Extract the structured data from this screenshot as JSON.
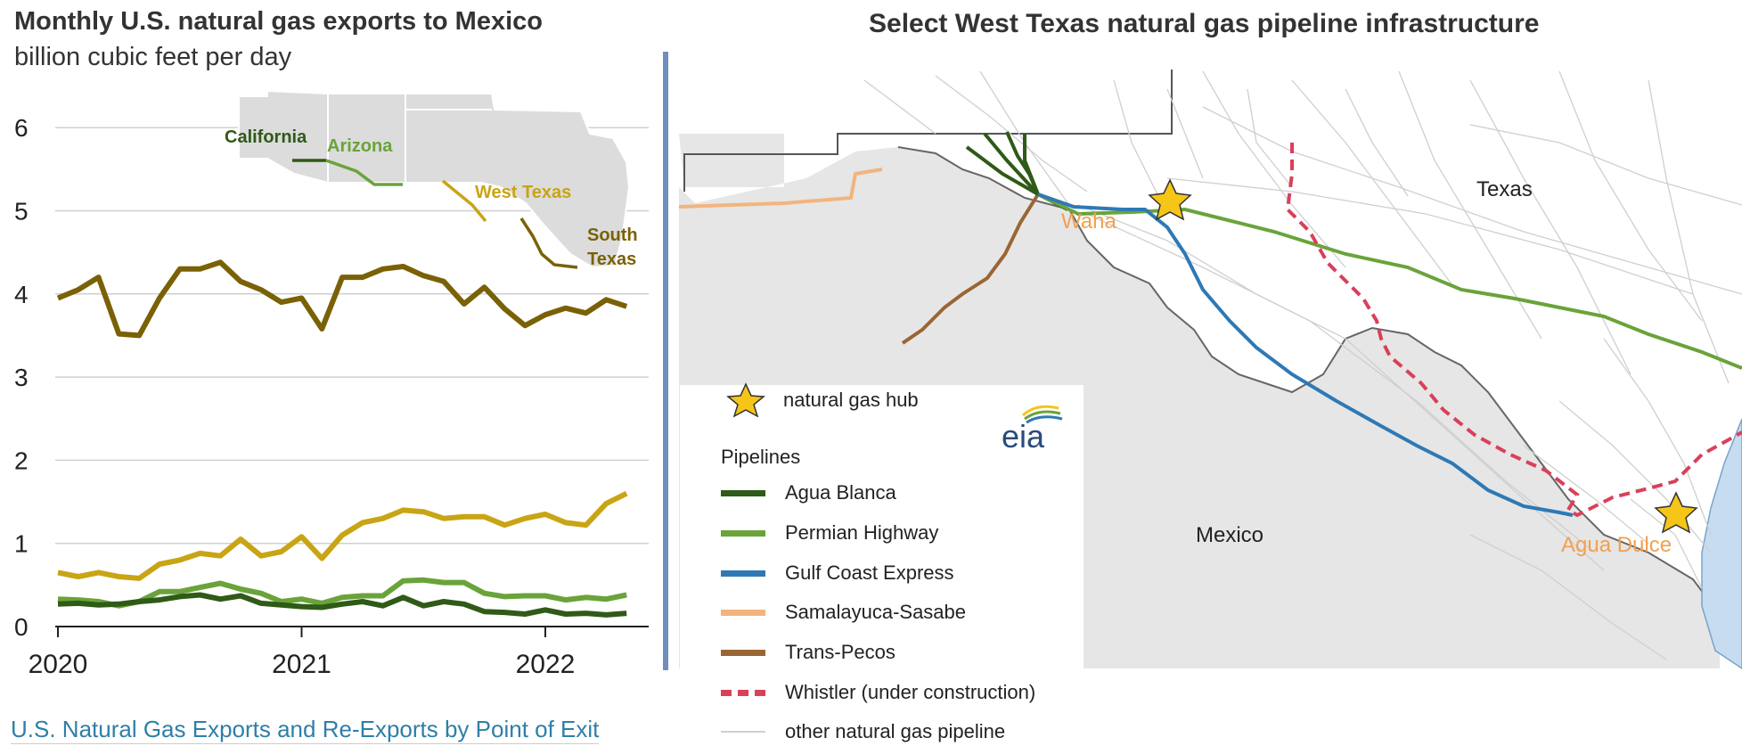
{
  "left": {
    "title": "Monthly U.S. natural gas exports to Mexico",
    "subtitle": "billion cubic feet per day",
    "source_link": "U.S. Natural Gas Exports and Re-Exports by Point of Exit",
    "inset_labels": {
      "california": "California",
      "arizona": "Arizona",
      "west_texas": "West Texas",
      "south_texas_1": "South",
      "south_texas_2": "Texas"
    }
  },
  "right": {
    "title": "Select West Texas natural gas pipeline infrastructure",
    "map_labels": {
      "texas": "Texas",
      "mexico": "Mexico",
      "waha": "Waha",
      "agua_dulce": "Agua Dulce"
    },
    "legend": {
      "hub": "natural gas hub",
      "pipelines_heading": "Pipelines",
      "items": [
        {
          "label": "Agua Blanca",
          "color": "#2f5a17",
          "style": "solid"
        },
        {
          "label": "Permian Highway",
          "color": "#6aa33a",
          "style": "solid"
        },
        {
          "label": "Gulf Coast Express",
          "color": "#2e79b5",
          "style": "solid"
        },
        {
          "label": "Samalayuca-Sasabe",
          "color": "#f2b47e",
          "style": "solid"
        },
        {
          "label": "Trans-Pecos",
          "color": "#9a6535",
          "style": "solid"
        },
        {
          "label": "Whistler (under construction)",
          "color": "#d9405a",
          "style": "dashed"
        },
        {
          "label": "other natural gas pipeline",
          "color": "#cfcfcf",
          "style": "solid"
        }
      ],
      "logo": "eia"
    }
  },
  "chart_data": {
    "type": "line",
    "title": "Monthly U.S. natural gas exports to Mexico",
    "ylabel": "billion cubic feet per day",
    "ylim": [
      0,
      6.5
    ],
    "yticks": [
      "0",
      "1",
      "2",
      "3",
      "4",
      "5",
      "6"
    ],
    "xticks": [
      "2020",
      "2021",
      "2022"
    ],
    "x_start": "2020-01",
    "grid": true,
    "series": [
      {
        "name": "South Texas",
        "color": "#7a6106",
        "values": [
          3.95,
          4.05,
          4.2,
          3.52,
          3.5,
          3.95,
          4.3,
          4.3,
          4.38,
          4.15,
          4.05,
          3.9,
          3.95,
          3.58,
          4.2,
          4.2,
          4.3,
          4.33,
          4.22,
          4.15,
          3.88,
          4.08,
          3.82,
          3.62,
          3.75,
          3.83,
          3.77,
          3.93,
          3.85
        ]
      },
      {
        "name": "West Texas",
        "color": "#c9a414",
        "values": [
          0.65,
          0.6,
          0.65,
          0.6,
          0.58,
          0.75,
          0.8,
          0.88,
          0.85,
          1.05,
          0.85,
          0.9,
          1.08,
          0.82,
          1.1,
          1.25,
          1.3,
          1.4,
          1.38,
          1.3,
          1.32,
          1.32,
          1.22,
          1.3,
          1.35,
          1.25,
          1.22,
          1.48,
          1.6
        ]
      },
      {
        "name": "Arizona",
        "color": "#6aa33a",
        "values": [
          0.33,
          0.32,
          0.3,
          0.25,
          0.3,
          0.42,
          0.42,
          0.47,
          0.52,
          0.45,
          0.4,
          0.3,
          0.33,
          0.28,
          0.35,
          0.37,
          0.37,
          0.55,
          0.56,
          0.53,
          0.53,
          0.4,
          0.36,
          0.37,
          0.37,
          0.32,
          0.35,
          0.33,
          0.38
        ]
      },
      {
        "name": "California",
        "color": "#2f5a17",
        "values": [
          0.27,
          0.28,
          0.26,
          0.27,
          0.3,
          0.32,
          0.36,
          0.38,
          0.33,
          0.37,
          0.28,
          0.26,
          0.24,
          0.23,
          0.27,
          0.3,
          0.25,
          0.35,
          0.25,
          0.3,
          0.27,
          0.18,
          0.17,
          0.15,
          0.2,
          0.15,
          0.16,
          0.14,
          0.16
        ]
      }
    ]
  }
}
